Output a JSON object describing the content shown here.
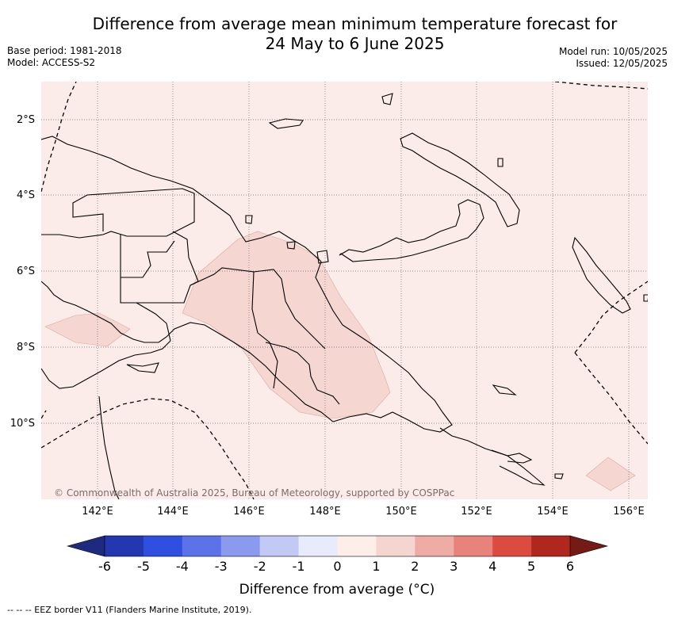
{
  "title_line1": "Difference from average mean minimum temperature forecast for",
  "title_line2": "24 May to 6 June 2025",
  "base_period": "Base period: 1981-2018",
  "model": "Model: ACCESS-S2",
  "model_run": "Model run: 10/05/2025",
  "issued": "Issued: 12/05/2025",
  "copyright": "© Commonwealth of Australia 2025, Bureau of Meteorology, supported by COSPPac",
  "footer": "--  --  -- EEZ border V11 (Flanders Marine Institute, 2019).",
  "map": {
    "lon_range": [
      140.5,
      156.5
    ],
    "lat_range": [
      -12.0,
      -1.0
    ],
    "lon_ticks": [
      "142°E",
      "144°E",
      "146°E",
      "148°E",
      "150°E",
      "152°E",
      "154°E",
      "156°E"
    ],
    "lat_ticks": [
      "2°S",
      "4°S",
      "6°S",
      "8°S",
      "10°S"
    ],
    "grid": true,
    "background_category": "0 to 1",
    "anomaly_regions": [
      {
        "category": "1 to 2",
        "area": "central Papua New Guinea highlands to Gulf"
      },
      {
        "category": "1 to 2",
        "area": "southern Papua border"
      },
      {
        "category": "1 to 2",
        "area": "south-east of Bougainville"
      }
    ]
  },
  "colorbar": {
    "ticks": [
      "-6",
      "-5",
      "-4",
      "-3",
      "-2",
      "-1",
      "0",
      "1",
      "2",
      "3",
      "4",
      "5",
      "6"
    ],
    "colors": [
      "#2237b0",
      "#2f4fe0",
      "#5b72e8",
      "#8a9aee",
      "#c3c9f5",
      "#e8ebfb",
      "#fdeeea",
      "#f5d5d0",
      "#eeaca4",
      "#e7837a",
      "#dc4b3f",
      "#b0271e"
    ],
    "below_color": "#1e2a80",
    "above_color": "#761a15",
    "label": "Difference from average (°C)"
  }
}
